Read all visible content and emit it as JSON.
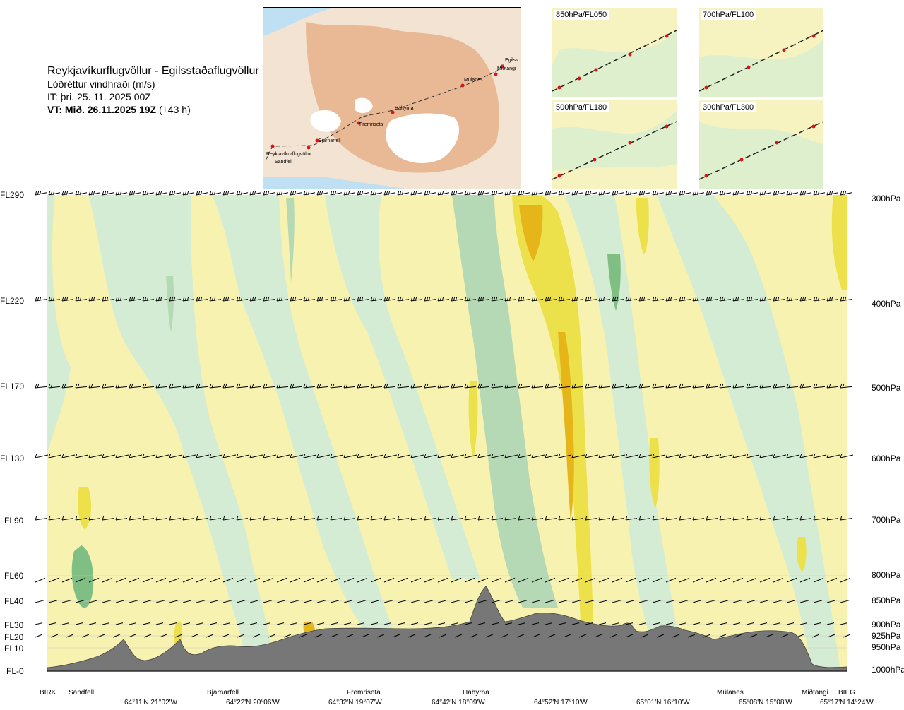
{
  "header": {
    "route_title": "Reykjavíkurflugvöllur - Egilsstaðaflugvöllur",
    "parameter": "Lóðréttur vindhraði (m/s)",
    "issue_time": "IT: þri. 25. 11. 2025 00Z",
    "valid_prefix": "VT: Mið. 26.11.2025 19Z",
    "valid_suffix": "(+43 h)"
  },
  "map": {
    "places": [
      "Reykjavíkurflugvöllur",
      "Sandfell",
      "Bjarnarfell",
      "Fremriseta",
      "Háhyrna",
      "Múlanes",
      "Egilss",
      "Miðtangi"
    ]
  },
  "thumbnails": [
    {
      "label": "850hPa/FL050"
    },
    {
      "label": "700hPa/FL100"
    },
    {
      "label": "500hPa/FL180"
    },
    {
      "label": "300hPa/FL300"
    }
  ],
  "levels": [
    {
      "fl": "FL290",
      "hpa": "300hPa"
    },
    {
      "fl": "FL220",
      "hpa": "400hPa"
    },
    {
      "fl": "FL170",
      "hpa": "500hPa"
    },
    {
      "fl": "FL130",
      "hpa": "600hPa"
    },
    {
      "fl": "FL90",
      "hpa": "700hPa"
    },
    {
      "fl": "FL60",
      "hpa": "800hPa"
    },
    {
      "fl": "FL40",
      "hpa": "850hPa"
    },
    {
      "fl": "FL30",
      "hpa": "900hPa"
    },
    {
      "fl": "FL20",
      "hpa": "925hPa"
    },
    {
      "fl": "FL10",
      "hpa": "950hPa"
    },
    {
      "fl": "FL-0",
      "hpa": "1000hPa"
    }
  ],
  "waypoints": [
    "BIRK",
    "Sandfell",
    "Bjarnarfell",
    "Fremriseta",
    "Háhyrna",
    "Múlanes",
    "Miðtangi",
    "BIEG"
  ],
  "coordinates": [
    "64°11'N 21°02'W",
    "64°22'N 20°06'W",
    "64°32'N 19°07'W",
    "64°42'N 18°09'W",
    "64°52'N 17°10'W",
    "65°01'N 16°10'W",
    "65°08'N 15°08'W",
    "65°17'N 14°24'W"
  ],
  "colors": {
    "green_light": "#d4ecd3",
    "green_mid": "#b4d9b4",
    "green_dark": "#7fbf83",
    "yellow_light": "#f7f2b0",
    "yellow_mid": "#ece14a",
    "orange": "#e5b51a",
    "terrain": "#777777",
    "barb": "#000000"
  },
  "chart_data": {
    "type": "heatmap",
    "title": "Lóðréttur vindhraði (m/s)",
    "x": [
      "BIRK",
      "Sandfell",
      "Bjarnarfell",
      "Fremriseta",
      "Háhyrna",
      "Múlanes",
      "Miðtangi",
      "BIEG"
    ],
    "y_levels_hpa": [
      1000,
      950,
      925,
      900,
      850,
      800,
      700,
      600,
      500,
      400,
      300
    ],
    "colors": "yellow/orange = upward motion, green = downward motion",
    "terrain_profile_ft": [
      300,
      700,
      900,
      1400,
      2300,
      2600,
      4300,
      3000,
      2600,
      2200,
      3300,
      2700,
      2200,
      2400,
      300
    ]
  }
}
